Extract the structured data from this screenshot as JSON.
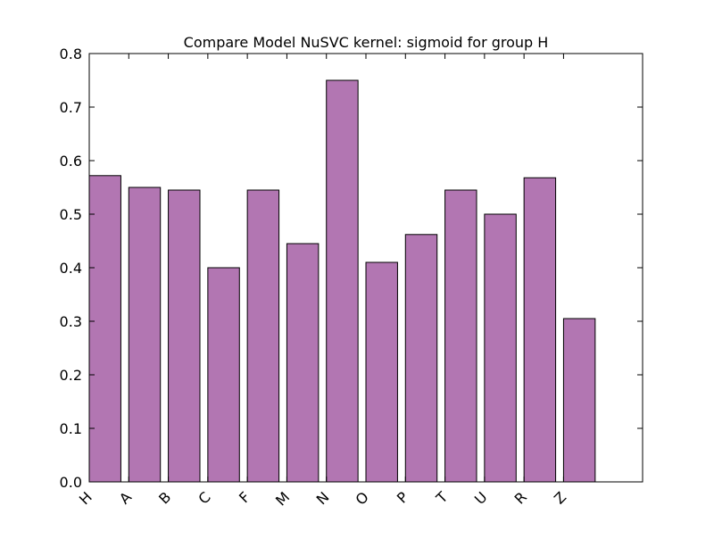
{
  "chart_data": {
    "type": "bar",
    "title": "Compare Model NuSVC kernel: sigmoid for group H",
    "xlabel": "",
    "ylabel": "",
    "categories": [
      "H",
      "A",
      "B",
      "C",
      "F",
      "M",
      "N",
      "O",
      "P",
      "T",
      "U",
      "R",
      "Z"
    ],
    "values": [
      0.572,
      0.55,
      0.545,
      0.4,
      0.545,
      0.445,
      0.75,
      0.41,
      0.462,
      0.545,
      0.5,
      0.568,
      0.305
    ],
    "ylim": [
      0,
      0.8
    ],
    "yticks": [
      "0.0",
      "0.1",
      "0.2",
      "0.3",
      "0.4",
      "0.5",
      "0.6",
      "0.7",
      "0.8"
    ],
    "xlim": [
      0,
      14
    ],
    "grid": false,
    "bar_color": "#b276b2",
    "edge_color": "#000000"
  }
}
